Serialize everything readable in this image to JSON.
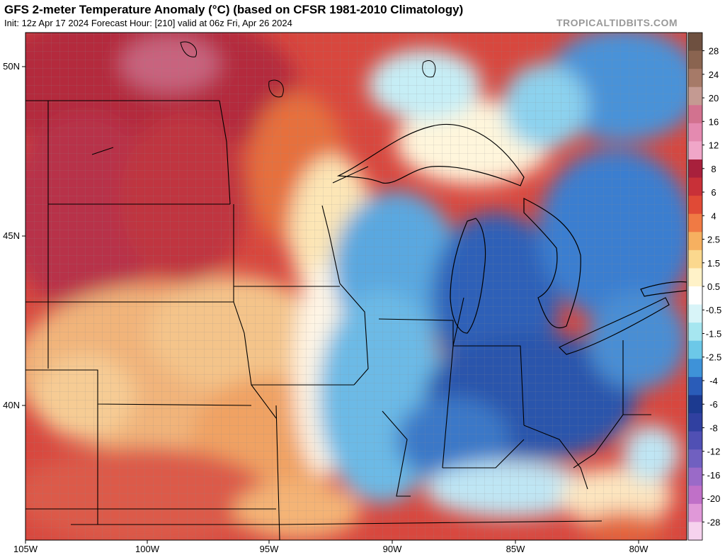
{
  "header": {
    "title": "GFS 2-meter Temperature Anomaly (°C) (based on CFSR 1981-2010 Climatology)",
    "subtitle": "Init: 12z Apr 17 2024   Forecast Hour: [210]   valid at 06z Fri, Apr 26 2024",
    "brand": "TROPICALTIDBITS.COM"
  },
  "map": {
    "lat_labels": [
      "50N",
      "45N",
      "40N"
    ],
    "lon_labels": [
      "105W",
      "100W",
      "95W",
      "90W",
      "85W",
      "80W"
    ]
  },
  "colorbar": {
    "labels": [
      "28",
      "24",
      "20",
      "16",
      "12",
      "8",
      "6",
      "4",
      "2.5",
      "1.5",
      "0.5",
      "-0.5",
      "-1.5",
      "-2.5",
      "-4",
      "-6",
      "-8",
      "-12",
      "-16",
      "-20",
      "-28"
    ],
    "colors": [
      "#6e5040",
      "#8a6450",
      "#a67a68",
      "#c49a92",
      "#d2728f",
      "#e48ab0",
      "#f0a6c8",
      "#a8203c",
      "#c83038",
      "#e04a36",
      "#f07a44",
      "#f6b060",
      "#fbd88e",
      "#fff2c8",
      "#ffffff",
      "#d8f4f8",
      "#a6e6f0",
      "#6cc8e8",
      "#3e92d8",
      "#2a5cb8",
      "#1c3a90",
      "#3040a0",
      "#5050b4",
      "#7060c0",
      "#9a6ac8",
      "#c070c8",
      "#e098d8",
      "#f6d2ee"
    ]
  }
}
